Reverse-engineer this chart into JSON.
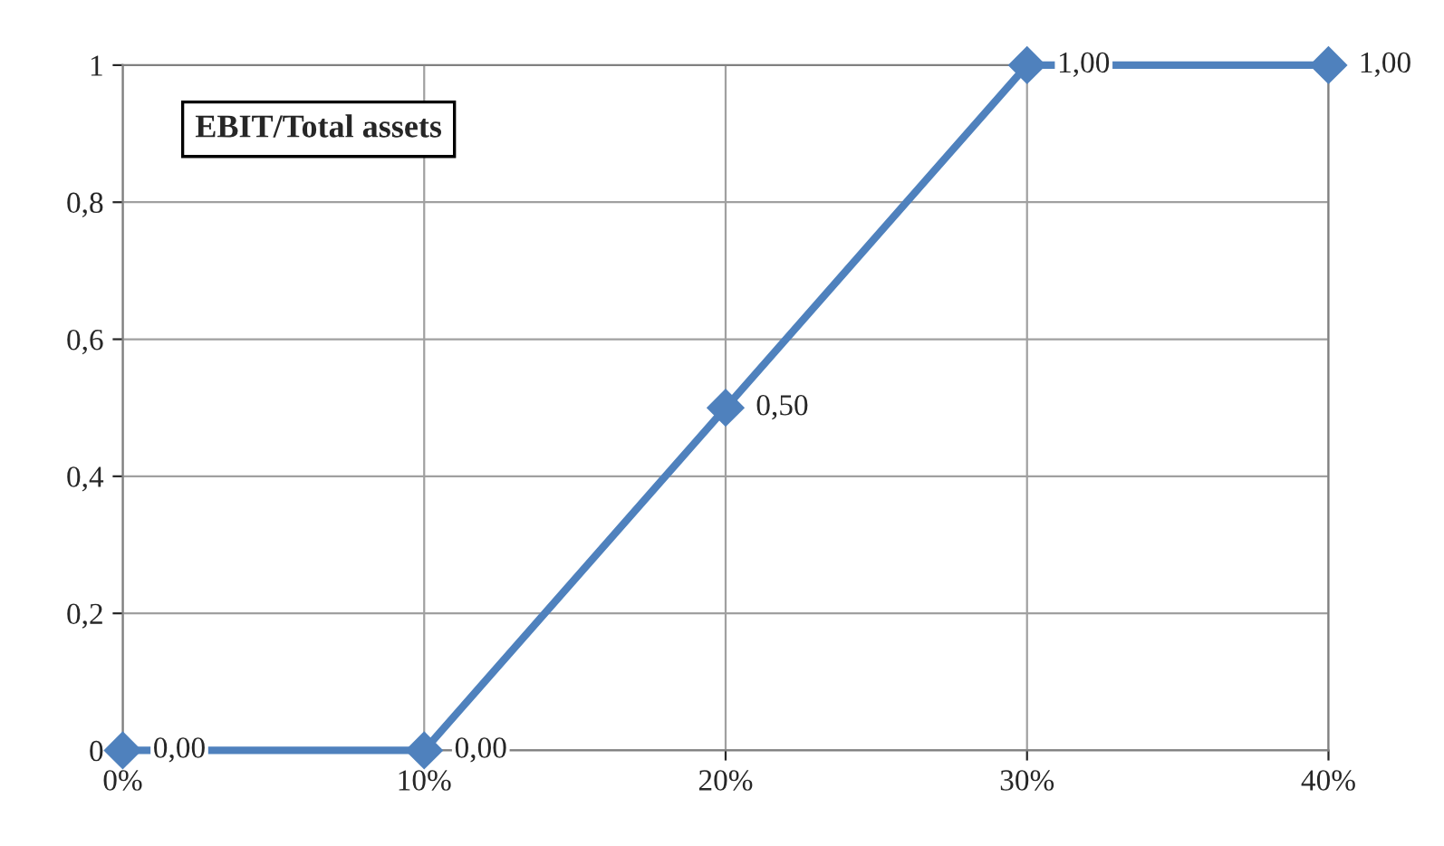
{
  "chart_data": {
    "type": "line",
    "title": "EBIT/Total assets",
    "x": [
      0,
      10,
      20,
      30,
      40
    ],
    "series": [
      {
        "color": "#4f81bd",
        "values": [
          0,
          0,
          0.5,
          1,
          1
        ],
        "value_labels": [
          "0,00",
          "0,00",
          "0,50",
          "1,00",
          "1,00"
        ]
      }
    ],
    "xlim": [
      0,
      40
    ],
    "xticks": [
      {
        "value": 0,
        "label": "0%"
      },
      {
        "value": 10,
        "label": "10%"
      },
      {
        "value": 20,
        "label": "20%"
      },
      {
        "value": 30,
        "label": "30%"
      },
      {
        "value": 40,
        "label": "40%"
      }
    ],
    "ylim": [
      0,
      1
    ],
    "yticks": [
      0,
      {
        "value": 0.2,
        "label": "0,2"
      },
      {
        "value": 0.4,
        "label": "0,4"
      },
      {
        "value": 0.6,
        "label": "0,6"
      },
      {
        "value": 0.8,
        "label": "0,8"
      },
      1
    ],
    "grid": true,
    "marker": "diamond",
    "line_style": "solid",
    "legend": false
  }
}
